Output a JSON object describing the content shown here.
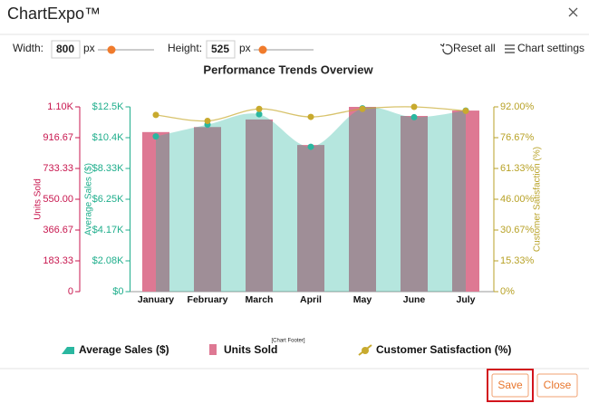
{
  "dialog": {
    "app_title": "ChartExpo™",
    "width_label": "Width:",
    "width_value": 800,
    "width_unit": "px",
    "height_label": "Height:",
    "height_value": 525,
    "height_unit": "px",
    "reset": "Reset all",
    "settings": "Chart settings",
    "footer": "[Chart Footer]",
    "save": "Save",
    "close": "Close"
  },
  "chart_data": {
    "type": "combo",
    "title": "Performance Trends Overview",
    "categories": [
      "January",
      "February",
      "March",
      "April",
      "May",
      "June",
      "July"
    ],
    "ylabel": "Units Sold",
    "ylim": [
      0,
      1100
    ],
    "ycolor": "#c8174f",
    "yticks": [
      0,
      183.33,
      366.67,
      {
        "value": 550,
        "label": "550.00"
      },
      733.33,
      916.67,
      {
        "value": 1100,
        "label": "1.10K"
      }
    ],
    "y3label": "Average Sales ($)",
    "y3lim": [
      0,
      12500
    ],
    "y3color": "#1fae8c",
    "y3ticks": [
      {
        "value": 0,
        "label": "$0"
      },
      {
        "value": 2083.33,
        "label": "$2.08K"
      },
      {
        "value": 4166.67,
        "label": "$4.17K"
      },
      {
        "value": 6250,
        "label": "$6.25K"
      },
      {
        "value": 8333.33,
        "label": "$8.33K"
      },
      {
        "value": 10416.67,
        "label": "$10.4K"
      },
      {
        "value": 12500,
        "label": "$12.5K"
      }
    ],
    "y2label": "Customer Satisfaction (%)",
    "y2lim": [
      0,
      92
    ],
    "y2color": "#b8a227",
    "y2ticks": [
      {
        "value": 0,
        "label": "0%"
      },
      {
        "value": 15.33,
        "label": "15.33%"
      },
      {
        "value": 30.67,
        "label": "30.67%"
      },
      {
        "value": 46,
        "label": "46.00%"
      },
      {
        "value": 61.33,
        "label": "61.33%"
      },
      {
        "value": 76.67,
        "label": "76.67%"
      },
      {
        "value": 92,
        "label": "92.00%"
      }
    ],
    "series": [
      {
        "name": "Average Sales ($)",
        "type": "area",
        "axis": "y3",
        "color": "#2ab7a0",
        "values": [
          10500,
          11300,
          12000,
          9800,
          12400,
          11800,
          12250
        ]
      },
      {
        "name": "Units Sold",
        "type": "bar",
        "axis": "y",
        "color": "#de7893",
        "values": [
          950,
          980,
          1025,
          873,
          1100,
          1046,
          1078
        ]
      },
      {
        "name": "Customer Satisfaction (%)",
        "type": "line",
        "axis": "y2",
        "color": "#c8aa2e",
        "values": [
          88,
          85,
          91,
          87,
          91,
          92,
          90
        ]
      }
    ]
  }
}
